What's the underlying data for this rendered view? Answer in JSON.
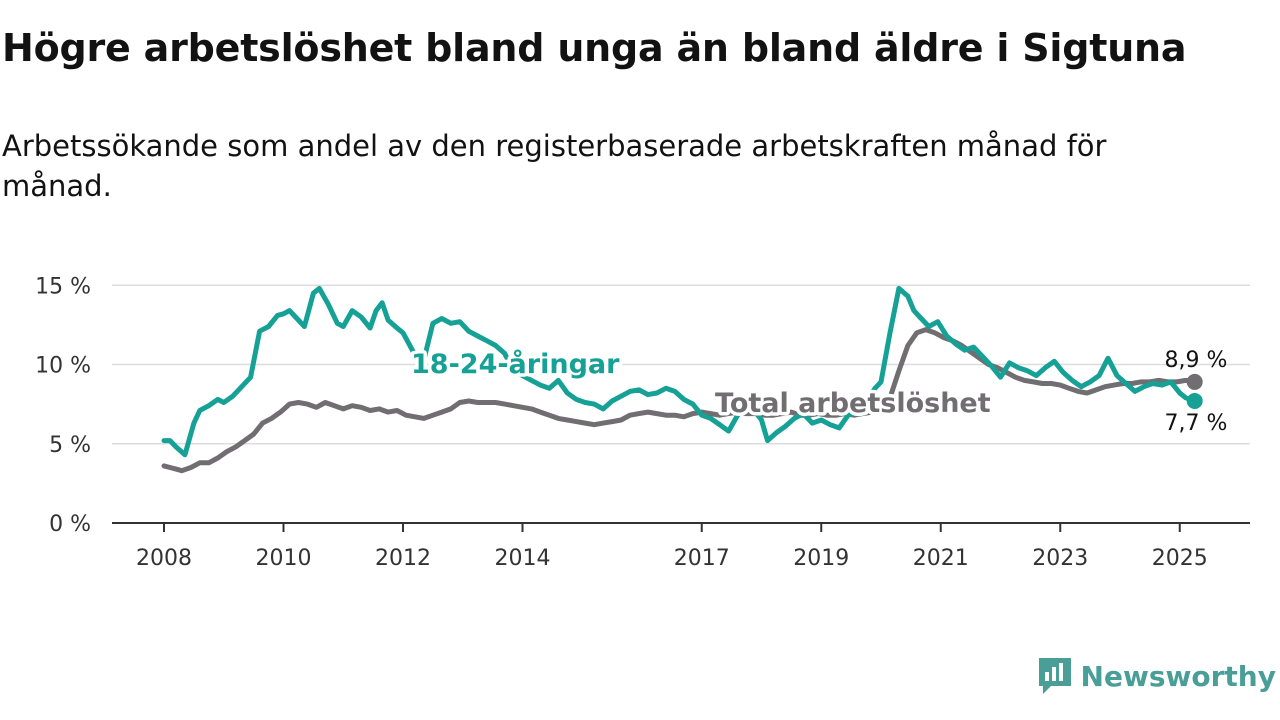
{
  "title": "Högre arbetslöshet bland unga än bland äldre i Sigtuna",
  "subtitle": "Arbetssökande som andel av den registerbaserade arbetskraften månad för månad.",
  "brand": {
    "name": "Newsworthy",
    "icon": "newsworthy-logo-icon",
    "color": "#4a9e98"
  },
  "chart_data": {
    "type": "line",
    "xlabel": "",
    "ylabel": "",
    "ylim": [
      0,
      16
    ],
    "y_ticks": [
      {
        "value": 0,
        "label": "0 %"
      },
      {
        "value": 5,
        "label": "5 %"
      },
      {
        "value": 10,
        "label": "10 %"
      },
      {
        "value": 15,
        "label": "15 %"
      }
    ],
    "x_ticks": [
      {
        "value": 2008,
        "label": "2008"
      },
      {
        "value": 2010,
        "label": "2010"
      },
      {
        "value": 2012,
        "label": "2012"
      },
      {
        "value": 2014,
        "label": "2014"
      },
      {
        "value": 2017,
        "label": "2017"
      },
      {
        "value": 2019,
        "label": "2019"
      },
      {
        "value": 2021,
        "label": "2021"
      },
      {
        "value": 2023,
        "label": "2023"
      },
      {
        "value": 2025,
        "label": "2025"
      }
    ],
    "xlim": [
      2007.15,
      2026.15
    ],
    "grid": true,
    "series": [
      {
        "name": "18-24-åringar",
        "color": "#15a196",
        "end_label": "7,7 %",
        "x": [
          2008.0,
          2008.1,
          2008.2,
          2008.35,
          2008.5,
          2008.6,
          2008.75,
          2008.9,
          2009.0,
          2009.15,
          2009.3,
          2009.45,
          2009.6,
          2009.75,
          2009.9,
          2010.0,
          2010.1,
          2010.2,
          2010.35,
          2010.5,
          2010.6,
          2010.75,
          2010.9,
          2011.0,
          2011.15,
          2011.3,
          2011.45,
          2011.55,
          2011.65,
          2011.75,
          2011.9,
          2012.0,
          2012.2,
          2012.35,
          2012.5,
          2012.65,
          2012.8,
          2012.95,
          2013.1,
          2013.25,
          2013.4,
          2013.55,
          2013.7,
          2013.85,
          2014.0,
          2014.15,
          2014.3,
          2014.45,
          2014.6,
          2014.75,
          2014.9,
          2015.05,
          2015.2,
          2015.35,
          2015.5,
          2015.65,
          2015.8,
          2015.95,
          2016.1,
          2016.25,
          2016.4,
          2016.55,
          2016.7,
          2016.85,
          2017.0,
          2017.15,
          2017.3,
          2017.45,
          2017.6,
          2017.75,
          2017.9,
          2018.0,
          2018.1,
          2018.25,
          2018.4,
          2018.55,
          2018.7,
          2018.85,
          2019.0,
          2019.15,
          2019.3,
          2019.45,
          2019.6,
          2019.75,
          2019.9,
          2020.0,
          2020.15,
          2020.3,
          2020.45,
          2020.55,
          2020.65,
          2020.8,
          2020.95,
          2021.1,
          2021.25,
          2021.4,
          2021.55,
          2021.7,
          2021.85,
          2022.0,
          2022.15,
          2022.3,
          2022.45,
          2022.6,
          2022.75,
          2022.9,
          2023.05,
          2023.2,
          2023.35,
          2023.5,
          2023.65,
          2023.8,
          2023.95,
          2024.1,
          2024.25,
          2024.4,
          2024.55,
          2024.7,
          2024.85,
          2025.0,
          2025.1,
          2025.25
        ],
        "y": [
          5.2,
          5.2,
          4.8,
          4.3,
          6.3,
          7.1,
          7.4,
          7.8,
          7.6,
          8.0,
          8.6,
          9.2,
          12.1,
          12.4,
          13.1,
          13.2,
          13.4,
          13.0,
          12.4,
          14.5,
          14.8,
          13.8,
          12.6,
          12.4,
          13.4,
          13.0,
          12.3,
          13.4,
          13.9,
          12.8,
          12.3,
          12.0,
          10.6,
          10.3,
          12.6,
          12.9,
          12.6,
          12.7,
          12.1,
          11.8,
          11.5,
          11.2,
          10.7,
          9.6,
          9.3,
          9.0,
          8.7,
          8.5,
          9.0,
          8.2,
          7.8,
          7.6,
          7.5,
          7.2,
          7.7,
          8.0,
          8.3,
          8.4,
          8.1,
          8.2,
          8.5,
          8.3,
          7.8,
          7.5,
          6.8,
          6.6,
          6.2,
          5.8,
          6.8,
          7.3,
          7.0,
          6.5,
          5.2,
          5.7,
          6.1,
          6.6,
          6.9,
          6.3,
          6.5,
          6.2,
          6.0,
          6.8,
          7.0,
          7.6,
          8.5,
          8.9,
          12.0,
          14.8,
          14.3,
          13.4,
          13.0,
          12.4,
          12.7,
          11.8,
          11.3,
          10.9,
          11.1,
          10.5,
          9.9,
          9.2,
          10.1,
          9.8,
          9.6,
          9.3,
          9.8,
          10.2,
          9.5,
          9.0,
          8.6,
          8.9,
          9.3,
          10.4,
          9.3,
          8.8,
          8.3,
          8.6,
          8.8,
          8.7,
          8.9,
          8.2,
          7.9,
          7.7
        ]
      },
      {
        "name": "Total arbetslöshet",
        "color": "#706e70",
        "end_label": "8,9 %",
        "x": [
          2008.0,
          2008.1,
          2008.2,
          2008.3,
          2008.45,
          2008.6,
          2008.75,
          2008.9,
          2009.05,
          2009.2,
          2009.35,
          2009.5,
          2009.65,
          2009.8,
          2009.95,
          2010.1,
          2010.25,
          2010.4,
          2010.55,
          2010.7,
          2010.85,
          2011.0,
          2011.15,
          2011.3,
          2011.45,
          2011.6,
          2011.75,
          2011.9,
          2012.05,
          2012.2,
          2012.35,
          2012.5,
          2012.65,
          2012.8,
          2012.95,
          2013.1,
          2013.25,
          2013.4,
          2013.55,
          2013.7,
          2013.85,
          2014.0,
          2014.15,
          2014.3,
          2014.45,
          2014.6,
          2014.75,
          2014.9,
          2015.05,
          2015.2,
          2015.35,
          2015.5,
          2015.65,
          2015.8,
          2015.95,
          2016.1,
          2016.25,
          2016.4,
          2016.55,
          2016.7,
          2016.85,
          2017.0,
          2017.15,
          2017.3,
          2017.45,
          2017.6,
          2017.75,
          2017.9,
          2018.05,
          2018.2,
          2018.35,
          2018.5,
          2018.65,
          2018.8,
          2018.95,
          2019.1,
          2019.25,
          2019.4,
          2019.55,
          2019.7,
          2019.85,
          2020.0,
          2020.15,
          2020.3,
          2020.45,
          2020.6,
          2020.75,
          2020.9,
          2021.05,
          2021.2,
          2021.35,
          2021.5,
          2021.65,
          2021.8,
          2021.95,
          2022.1,
          2022.25,
          2022.4,
          2022.55,
          2022.7,
          2022.85,
          2023.0,
          2023.15,
          2023.3,
          2023.45,
          2023.6,
          2023.75,
          2023.9,
          2024.05,
          2024.2,
          2024.35,
          2024.5,
          2024.65,
          2024.8,
          2024.95,
          2025.1,
          2025.25
        ],
        "y": [
          3.6,
          3.5,
          3.4,
          3.3,
          3.5,
          3.8,
          3.8,
          4.1,
          4.5,
          4.8,
          5.2,
          5.6,
          6.3,
          6.6,
          7.0,
          7.5,
          7.6,
          7.5,
          7.3,
          7.6,
          7.4,
          7.2,
          7.4,
          7.3,
          7.1,
          7.2,
          7.0,
          7.1,
          6.8,
          6.7,
          6.6,
          6.8,
          7.0,
          7.2,
          7.6,
          7.7,
          7.6,
          7.6,
          7.6,
          7.5,
          7.4,
          7.3,
          7.2,
          7.0,
          6.8,
          6.6,
          6.5,
          6.4,
          6.3,
          6.2,
          6.3,
          6.4,
          6.5,
          6.8,
          6.9,
          7.0,
          6.9,
          6.8,
          6.8,
          6.7,
          6.9,
          7.0,
          6.9,
          6.8,
          6.9,
          7.0,
          6.9,
          6.9,
          6.8,
          6.8,
          6.9,
          7.0,
          6.8,
          6.8,
          6.9,
          6.8,
          6.8,
          6.9,
          6.8,
          6.9,
          7.0,
          7.3,
          7.9,
          9.6,
          11.2,
          12.0,
          12.2,
          12.0,
          11.7,
          11.5,
          11.2,
          10.8,
          10.4,
          10.0,
          9.8,
          9.5,
          9.2,
          9.0,
          8.9,
          8.8,
          8.8,
          8.7,
          8.5,
          8.3,
          8.2,
          8.4,
          8.6,
          8.7,
          8.8,
          8.8,
          8.9,
          8.9,
          9.0,
          8.9,
          8.9,
          9.0,
          8.9
        ]
      }
    ]
  }
}
